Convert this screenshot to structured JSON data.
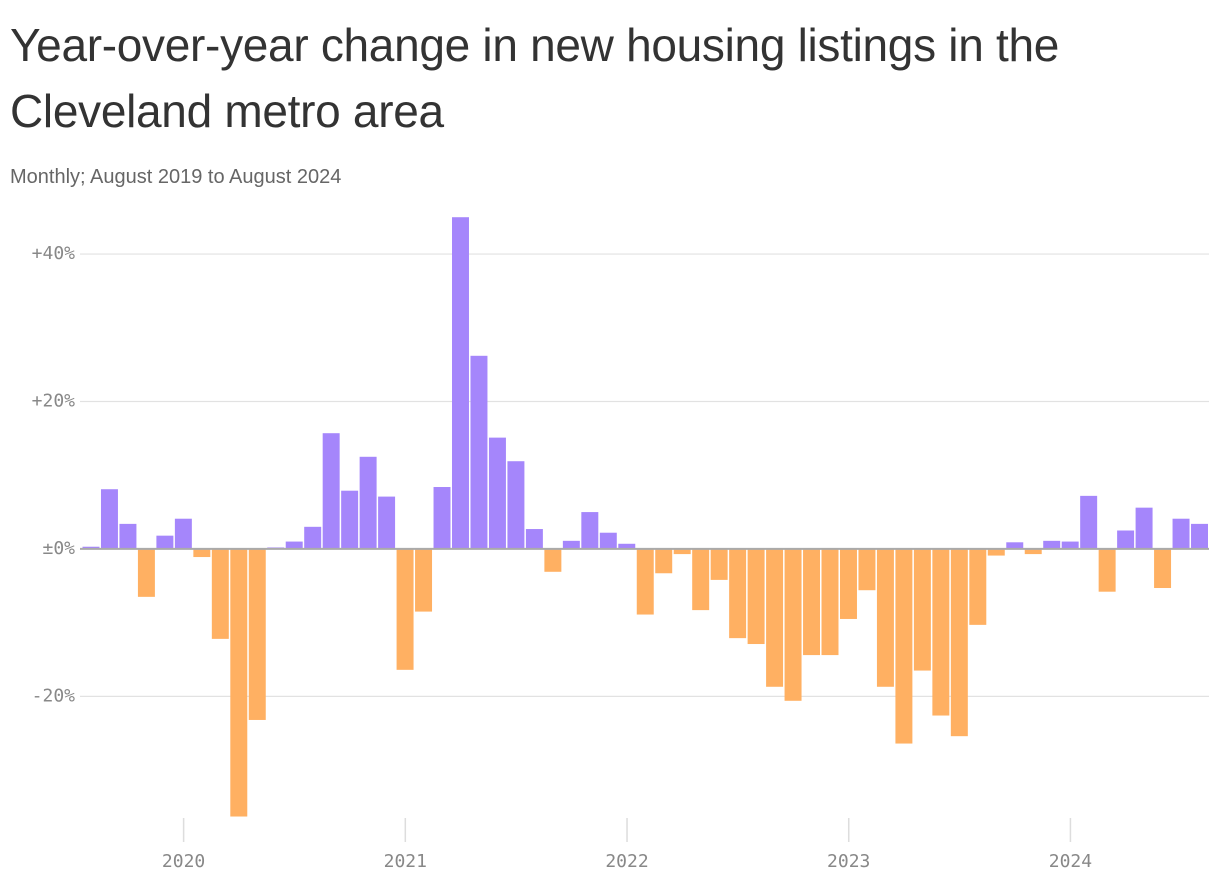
{
  "chart_data": {
    "type": "bar",
    "title": "Year-over-year change in new housing listings in the Cleveland metro area",
    "subtitle": "Monthly; August 2019 to August 2024",
    "categories": [
      null,
      null,
      null,
      null,
      null,
      "2020",
      null,
      null,
      null,
      null,
      null,
      null,
      null,
      null,
      null,
      null,
      null,
      "2021",
      null,
      null,
      null,
      null,
      null,
      null,
      null,
      null,
      null,
      null,
      null,
      "2022",
      null,
      null,
      null,
      null,
      null,
      null,
      null,
      null,
      null,
      null,
      null,
      "2023",
      null,
      null,
      null,
      null,
      null,
      null,
      null,
      null,
      null,
      null,
      null,
      "2024",
      null,
      null,
      null,
      null,
      null,
      null,
      null
    ],
    "values": [
      0.3,
      8.1,
      3.4,
      -6.5,
      1.8,
      4.1,
      -1.1,
      -12.2,
      -36.3,
      -23.2,
      0.2,
      1.0,
      3.0,
      15.7,
      7.9,
      12.5,
      7.1,
      -16.4,
      -8.5,
      8.4,
      45.0,
      26.2,
      15.1,
      11.9,
      2.7,
      -3.1,
      1.1,
      5.0,
      2.2,
      0.7,
      -8.9,
      -3.3,
      -0.7,
      -8.3,
      -4.2,
      -12.1,
      -12.9,
      -18.7,
      -20.6,
      -14.4,
      -14.4,
      -9.5,
      -5.6,
      -18.7,
      -26.4,
      -16.5,
      -22.6,
      -25.4,
      -10.3,
      -0.9,
      0.9,
      -0.7,
      1.1,
      1.0,
      7.2,
      -5.8,
      2.5,
      5.6,
      -5.3,
      4.1,
      3.4
    ],
    "colors": {
      "positive": "#a586fb",
      "negative": "#ffb062"
    },
    "ylim": [
      -36.5,
      45.3
    ],
    "yticks": [
      {
        "value": 40,
        "label": "+40%"
      },
      {
        "value": 20,
        "label": "+20%"
      },
      {
        "value": 0,
        "label": "±0%"
      },
      {
        "value": -20,
        "label": "-20%"
      }
    ],
    "grid": true
  }
}
